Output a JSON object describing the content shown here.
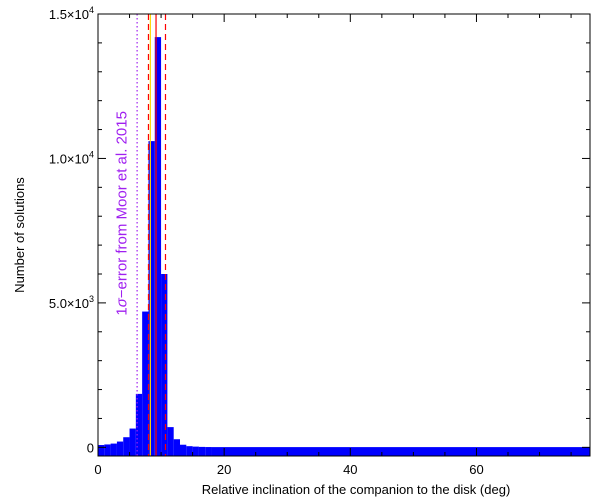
{
  "chart_data": {
    "type": "bar",
    "title": "",
    "xlabel": "Relative inclination of the companion to the disk (deg)",
    "ylabel": "Number of solutions",
    "xlim": [
      0,
      78
    ],
    "ylim": [
      -300,
      15000
    ],
    "bin_width": 1,
    "bar_color": "#0000ff",
    "bins": [
      {
        "x0": 0,
        "value": 80
      },
      {
        "x0": 1,
        "value": 100
      },
      {
        "x0": 2,
        "value": 130
      },
      {
        "x0": 3,
        "value": 200
      },
      {
        "x0": 4,
        "value": 350
      },
      {
        "x0": 5,
        "value": 650
      },
      {
        "x0": 6,
        "value": 1850
      },
      {
        "x0": 7,
        "value": 4700
      },
      {
        "x0": 8,
        "value": 10600
      },
      {
        "x0": 9,
        "value": 14200
      },
      {
        "x0": 10,
        "value": 6000
      },
      {
        "x0": 11,
        "value": 700
      },
      {
        "x0": 12,
        "value": 280
      },
      {
        "x0": 13,
        "value": 90
      },
      {
        "x0": 14,
        "value": 40
      },
      {
        "x0": 15,
        "value": 25
      },
      {
        "x0": 16,
        "value": 15
      },
      {
        "x0": 17,
        "value": 10
      }
    ],
    "tail": {
      "x0": 18,
      "x1": 78,
      "value": 8
    },
    "x_ticks": [
      {
        "value": 0,
        "label": "0"
      },
      {
        "value": 20,
        "label": "20"
      },
      {
        "value": 40,
        "label": "40"
      },
      {
        "value": 60,
        "label": "60"
      }
    ],
    "y_ticks": [
      {
        "value": 0,
        "base": "0",
        "exp": ""
      },
      {
        "value": 5000,
        "base": "5.0×10",
        "exp": "3"
      },
      {
        "value": 10000,
        "base": "1.0×10",
        "exp": "4"
      },
      {
        "value": 15000,
        "base": "1.5×10",
        "exp": "4"
      }
    ],
    "vertical_lines": [
      {
        "x": 6.2,
        "color": "#a020f0",
        "style": "dotted"
      },
      {
        "x": 8.0,
        "color": "#ff0000",
        "style": "dashed"
      },
      {
        "x": 8.3,
        "color": "#ffd700",
        "style": "solid"
      },
      {
        "x": 9.2,
        "color": "#ff0000",
        "style": "solid"
      },
      {
        "x": 10.7,
        "color": "#ff0000",
        "style": "dashed"
      }
    ],
    "annotation": {
      "prefix": "1",
      "sigma": "σ",
      "text": "−error from Moor et al. 2015",
      "x": 4.5,
      "y": 8100,
      "color": "#a020f0"
    }
  }
}
